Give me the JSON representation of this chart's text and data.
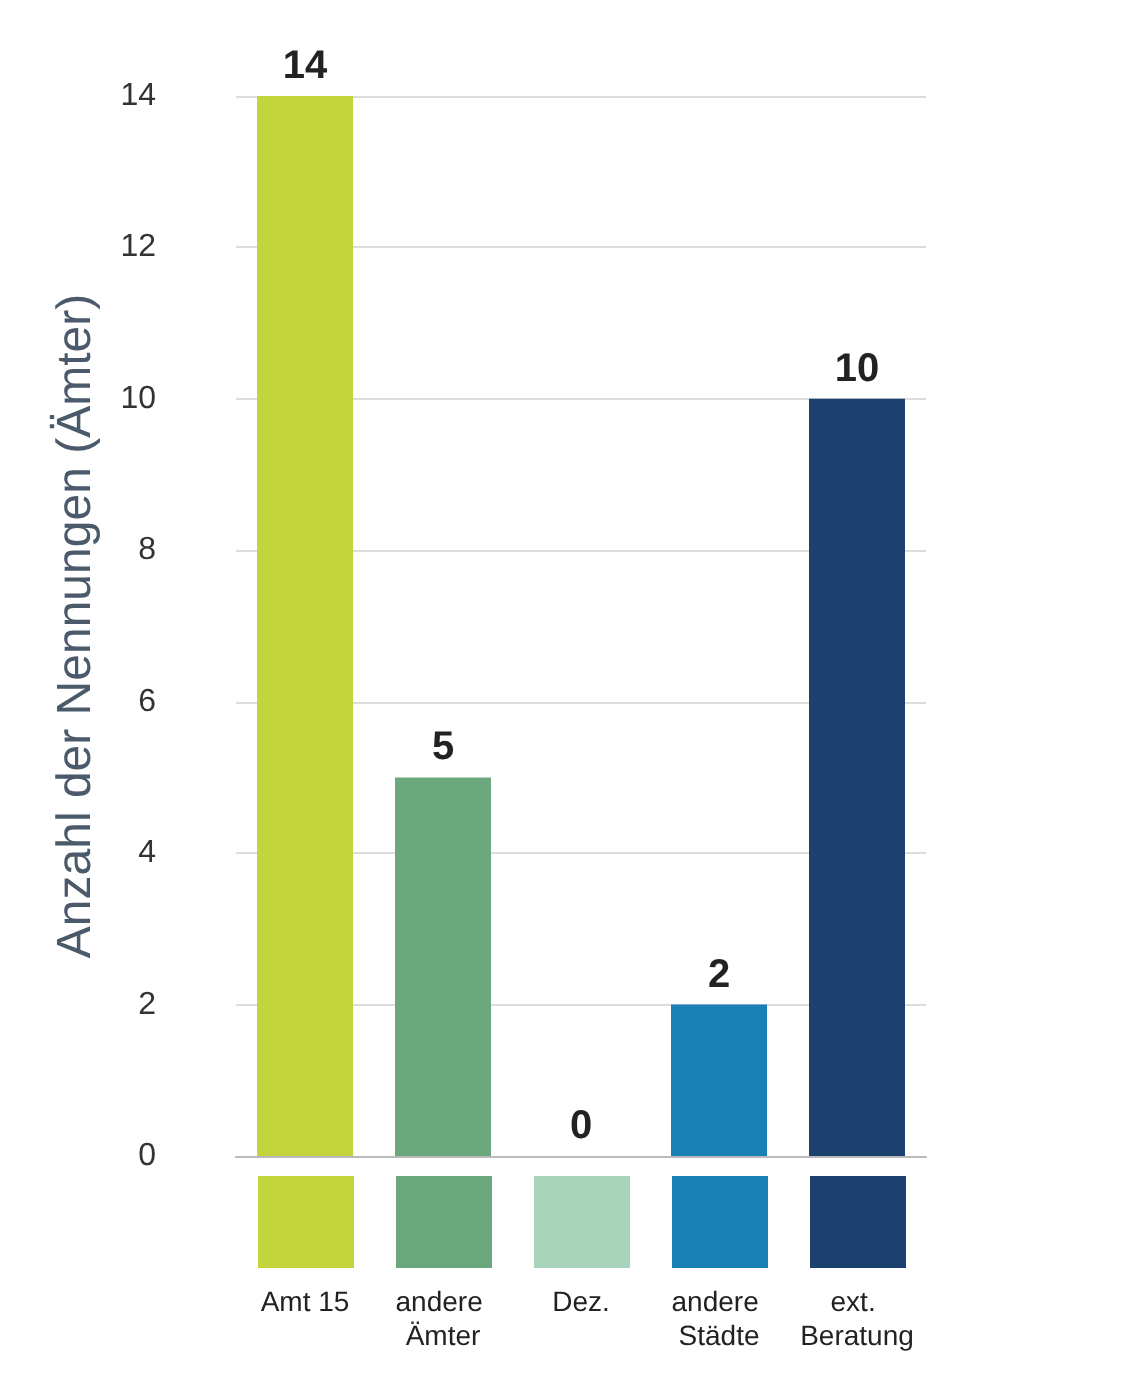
{
  "chart_data": {
    "type": "bar",
    "ylabel": "Anzahl der Nennungen (Ämter)",
    "categories": [
      "Amt 15",
      "andere Ämter",
      "Dez.",
      "andere Städte",
      "ext. Beratung"
    ],
    "values": [
      14,
      5,
      0,
      2,
      10
    ],
    "colors": [
      "#c3d53c",
      "#6ba77c",
      "#a9d2ba",
      "#1b80b6",
      "#1d416f"
    ],
    "ylim": [
      0,
      14
    ],
    "yticks": [
      0,
      2,
      4,
      6,
      8,
      10,
      12,
      14
    ],
    "grid": "y",
    "data_labels": true
  }
}
